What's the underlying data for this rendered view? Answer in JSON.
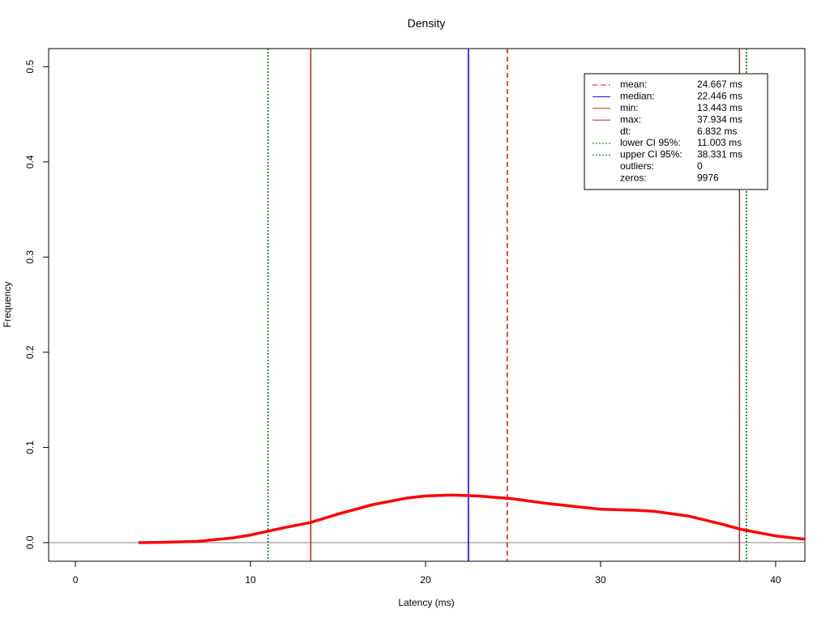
{
  "chart_data": {
    "type": "line",
    "title": "Density",
    "x_label": "Latency (ms)",
    "y_label": "Frequency",
    "x": [
      3.6,
      5,
      7,
      9,
      10,
      12,
      13.4,
      15,
      17,
      19,
      20,
      21.5,
      23,
      25,
      27,
      29,
      30,
      32,
      33,
      35,
      37,
      38,
      40,
      41.7
    ],
    "values": [
      0,
      0.0003,
      0.0013,
      0.005,
      0.008,
      0.016,
      0.021,
      0.03,
      0.04,
      0.047,
      0.049,
      0.05,
      0.049,
      0.046,
      0.041,
      0.037,
      0.035,
      0.034,
      0.033,
      0.028,
      0.019,
      0.014,
      0.007,
      0.0035
    ],
    "color": "#ff0000",
    "xlim": [
      -1.53,
      41.67
    ],
    "ylim": [
      -0.0196,
      0.519
    ],
    "xticks": [
      0,
      10,
      20,
      30,
      40
    ],
    "yticks": [
      {
        "value": 0,
        "label": "0.0"
      },
      0.1,
      0.2,
      0.3,
      0.4,
      0.5
    ],
    "baseline_color": "#808080",
    "legend_position": "top-right",
    "legend": [
      {
        "label": "mean:",
        "text": "24.667 ms",
        "value": 24.667,
        "color": "#ff0000",
        "style": "dashed"
      },
      {
        "label": "median:",
        "text": "22.446 ms",
        "value": 22.446,
        "color": "#0000ff",
        "style": "solid"
      },
      {
        "label": "min:",
        "text": "13.443 ms",
        "value": 13.443,
        "color": "#a52a2a",
        "style": "solid"
      },
      {
        "label": "max:",
        "text": "37.934 ms",
        "value": 37.934,
        "color": "#a52a2a",
        "style": "solid"
      },
      {
        "label": "dt:",
        "text": "6.832 ms"
      },
      {
        "label": "lower CI 95%:",
        "text": "11.003 ms",
        "value": 11.003,
        "color": "#006400",
        "style": "dotted"
      },
      {
        "label": "upper CI 95%:",
        "text": "38.331 ms",
        "value": 38.331,
        "color": "#006400",
        "style": "dotted"
      },
      {
        "label": "outliers:",
        "text": "0"
      },
      {
        "label": "zeros:",
        "text": "9976"
      }
    ]
  }
}
